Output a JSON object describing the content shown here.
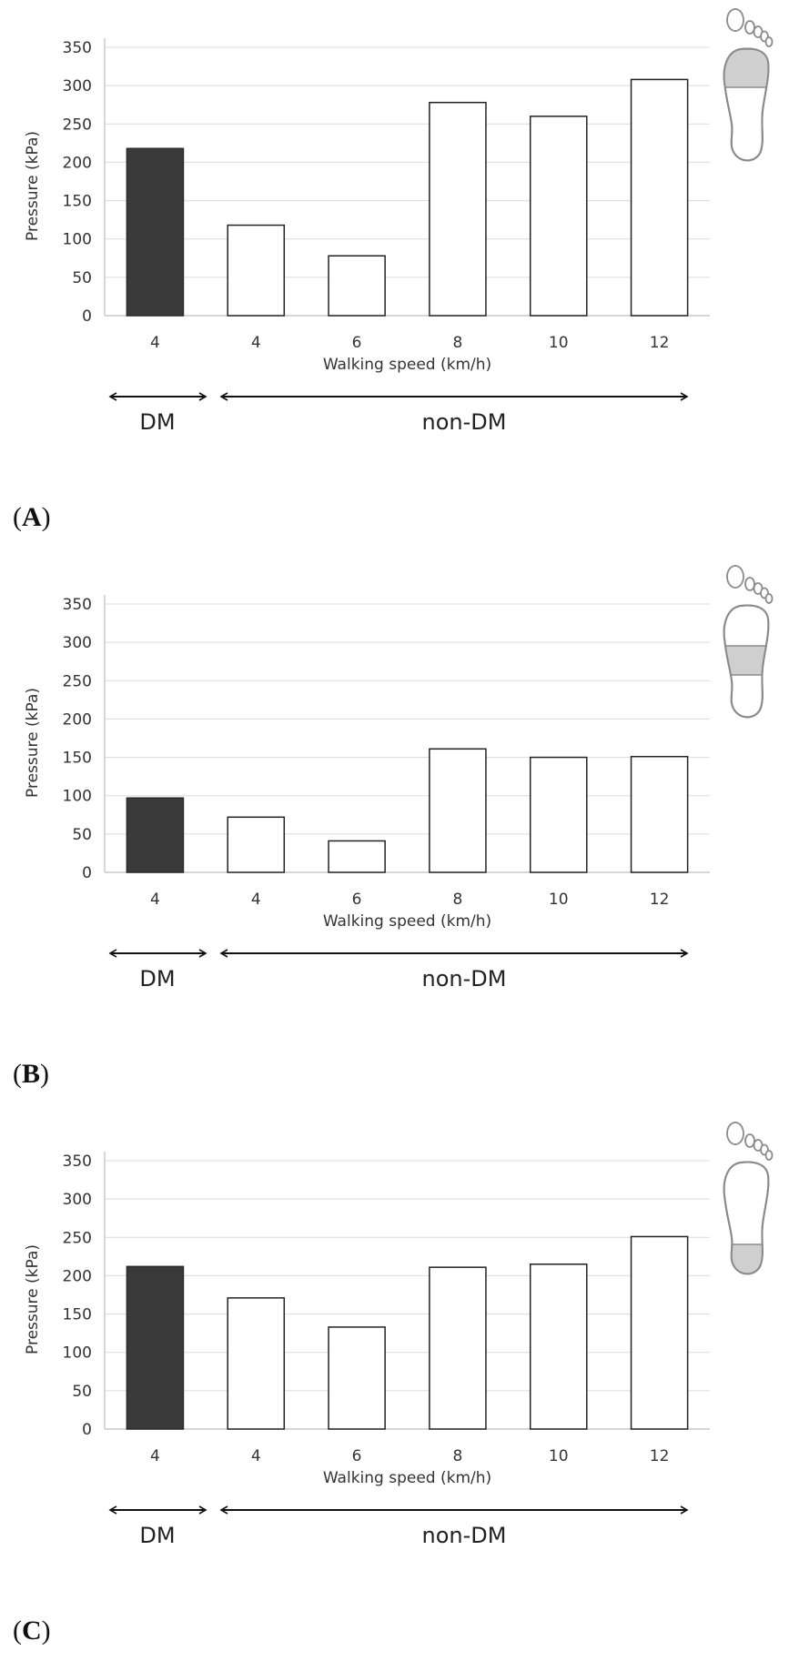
{
  "chart_data": [
    {
      "type": "bar",
      "panel_label": "A",
      "categories": [
        "4",
        "4",
        "6",
        "8",
        "10",
        "12"
      ],
      "values": [
        218,
        118,
        78,
        278,
        260,
        308
      ],
      "groups": [
        "DM",
        "non-DM",
        "non-DM",
        "non-DM",
        "non-DM",
        "non-DM"
      ],
      "colors": [
        "#3a3a3a",
        "#ffffff",
        "#ffffff",
        "#ffffff",
        "#ffffff",
        "#ffffff"
      ],
      "xlabel": "Walking speed (km/h)",
      "ylabel": "Pressure (kPa)",
      "ylim": [
        0,
        350
      ],
      "yticks": [
        0,
        50,
        100,
        150,
        200,
        250,
        300,
        350
      ],
      "grid": true,
      "group_labels": {
        "dm": "DM",
        "non_dm": "non-DM"
      },
      "foot_icon_region": "forefoot"
    },
    {
      "type": "bar",
      "panel_label": "B",
      "categories": [
        "4",
        "4",
        "6",
        "8",
        "10",
        "12"
      ],
      "values": [
        97,
        72,
        41,
        161,
        150,
        151
      ],
      "groups": [
        "DM",
        "non-DM",
        "non-DM",
        "non-DM",
        "non-DM",
        "non-DM"
      ],
      "colors": [
        "#3a3a3a",
        "#ffffff",
        "#ffffff",
        "#ffffff",
        "#ffffff",
        "#ffffff"
      ],
      "xlabel": "Walking speed (km/h)",
      "ylabel": "Pressure (kPa)",
      "ylim": [
        0,
        350
      ],
      "yticks": [
        0,
        50,
        100,
        150,
        200,
        250,
        300,
        350
      ],
      "grid": true,
      "group_labels": {
        "dm": "DM",
        "non_dm": "non-DM"
      },
      "foot_icon_region": "midfoot"
    },
    {
      "type": "bar",
      "panel_label": "C",
      "categories": [
        "4",
        "4",
        "6",
        "8",
        "10",
        "12"
      ],
      "values": [
        212,
        171,
        133,
        211,
        215,
        251
      ],
      "groups": [
        "DM",
        "non-DM",
        "non-DM",
        "non-DM",
        "non-DM",
        "non-DM"
      ],
      "colors": [
        "#3a3a3a",
        "#ffffff",
        "#ffffff",
        "#ffffff",
        "#ffffff",
        "#ffffff"
      ],
      "xlabel": "Walking speed (km/h)",
      "ylabel": "Pressure (kPa)",
      "ylim": [
        0,
        350
      ],
      "yticks": [
        0,
        50,
        100,
        150,
        200,
        250,
        300,
        350
      ],
      "grid": true,
      "group_labels": {
        "dm": "DM",
        "non_dm": "non-DM"
      },
      "foot_icon_region": "heel"
    }
  ]
}
